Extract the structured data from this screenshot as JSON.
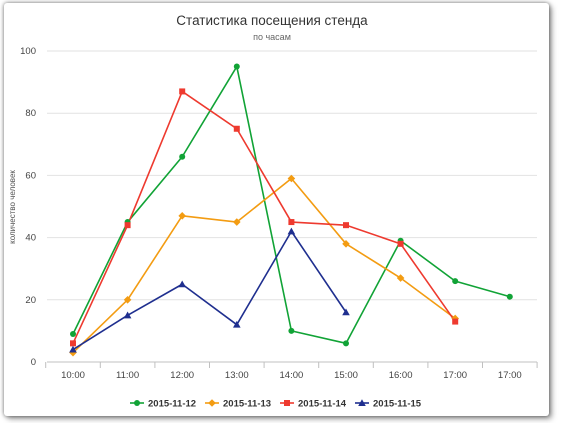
{
  "chart_data": {
    "type": "line",
    "title": "Статистика посещения стенда",
    "subtitle": "по часам",
    "xlabel": "",
    "ylabel": "количество человек",
    "categories": [
      "10:00",
      "11:00",
      "12:00",
      "13:00",
      "14:00",
      "15:00",
      "16:00",
      "17:00",
      "17:00"
    ],
    "ylim": [
      0,
      100
    ],
    "yticks": [
      0,
      20,
      40,
      60,
      80,
      100
    ],
    "grid": "horizontal",
    "legend_position": "bottom",
    "series": [
      {
        "name": "2015-11-12",
        "color": "#11a336",
        "marker": "circle",
        "values": [
          9,
          45,
          66,
          95,
          10,
          6,
          39,
          26,
          21
        ]
      },
      {
        "name": "2015-11-13",
        "color": "#f39c12",
        "marker": "diamond",
        "values": [
          3,
          20,
          47,
          45,
          59,
          38,
          27,
          14,
          null
        ]
      },
      {
        "name": "2015-11-14",
        "color": "#ee3a2f",
        "marker": "square",
        "values": [
          6,
          44,
          87,
          75,
          45,
          44,
          38,
          13,
          null
        ]
      },
      {
        "name": "2015-11-15",
        "color": "#1f2f8f",
        "marker": "triangle",
        "values": [
          4,
          15,
          25,
          12,
          42,
          16,
          null,
          null,
          null
        ]
      }
    ]
  }
}
